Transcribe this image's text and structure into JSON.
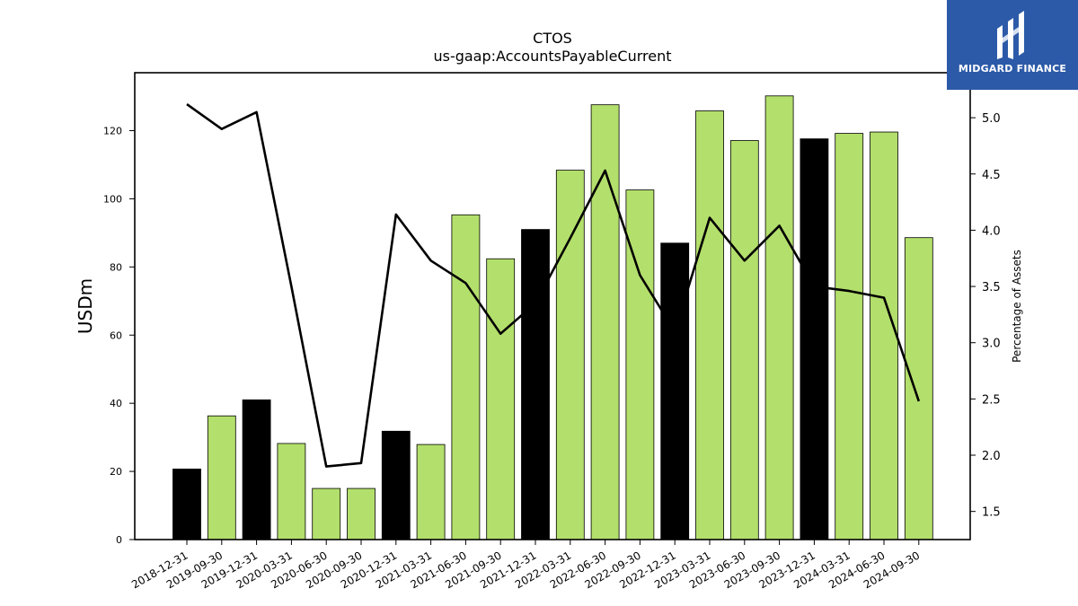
{
  "brand": {
    "name": "MIDGARD FINANCE",
    "color": "#2c5aa8"
  },
  "chart_data": {
    "type": "bar",
    "title": "CTOS",
    "subtitle": "us-gaap:AccountsPayableCurrent",
    "ylabel": "USDm",
    "y2label": "Percentage of Assets",
    "ylim": [
      0,
      137
    ],
    "y2lim": [
      1.25,
      5.4
    ],
    "yticks": [
      0,
      20,
      40,
      60,
      80,
      100,
      120
    ],
    "y2ticks": [
      1.5,
      2.0,
      2.5,
      3.0,
      3.5,
      4.0,
      4.5,
      5.0
    ],
    "categories": [
      "2018-12-31",
      "2019-09-30",
      "2019-12-31",
      "2020-03-31",
      "2020-06-30",
      "2020-09-30",
      "2020-12-31",
      "2021-03-31",
      "2021-06-30",
      "2021-09-30",
      "2021-12-31",
      "2022-03-31",
      "2022-06-30",
      "2022-09-30",
      "2022-12-31",
      "2023-03-31",
      "2023-06-30",
      "2023-09-30",
      "2023-12-31",
      "2024-03-31",
      "2024-06-30",
      "2024-09-30"
    ],
    "series": [
      {
        "type": "bar",
        "values": [
          20.7,
          36.3,
          41.0,
          28.2,
          15.0,
          15.0,
          31.8,
          27.9,
          95.3,
          82.4,
          91.0,
          108.4,
          127.6,
          102.6,
          87.0,
          125.8,
          117.1,
          130.2,
          117.6,
          119.2,
          119.6,
          88.6
        ],
        "colors": [
          "#000000",
          "#b3df6c",
          "#000000",
          "#b3df6c",
          "#b3df6c",
          "#b3df6c",
          "#000000",
          "#b3df6c",
          "#b3df6c",
          "#b3df6c",
          "#000000",
          "#b3df6c",
          "#b3df6c",
          "#b3df6c",
          "#000000",
          "#b3df6c",
          "#b3df6c",
          "#b3df6c",
          "#000000",
          "#b3df6c",
          "#b3df6c",
          "#b3df6c"
        ]
      },
      {
        "type": "line",
        "axis": "right",
        "color": "#000000",
        "values": [
          5.12,
          4.9,
          5.05,
          3.5,
          1.9,
          1.93,
          4.14,
          3.73,
          3.53,
          3.08,
          3.35,
          3.93,
          4.53,
          3.6,
          3.1,
          4.11,
          3.73,
          4.04,
          3.5,
          3.46,
          3.4,
          2.48
        ]
      }
    ],
    "bar_colors": {
      "year_end": "#000000",
      "quarter": "#b3df6c"
    },
    "grid": false,
    "legend": "none"
  }
}
